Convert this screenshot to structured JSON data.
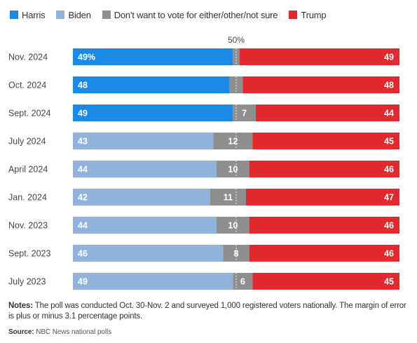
{
  "chart_data": {
    "type": "bar",
    "orientation": "horizontal-stacked",
    "legend": [
      {
        "name": "Harris",
        "color": "#1a8ae6"
      },
      {
        "name": "Biden",
        "color": "#90b2db"
      },
      {
        "name": "Don't want to vote for either/other/not sure",
        "color": "#8e8e8e"
      },
      {
        "name": "Trump",
        "color": "#e0282f"
      }
    ],
    "midline_label": "50%",
    "xlim": [
      0,
      100
    ],
    "legend_position": "top-left",
    "categories": [
      "Nov. 2024",
      "Oct. 2024",
      "Sept. 2024",
      "July 2024",
      "April 2024",
      "Jan. 2024",
      "Nov. 2023",
      "Sept. 2023",
      "July 2023"
    ],
    "rows": [
      {
        "label": "Nov. 2024",
        "dem_name": "Harris",
        "dem": 49,
        "dem_label": "49%",
        "other": 2,
        "other_label": "",
        "trump": 49,
        "trump_label": "49"
      },
      {
        "label": "Oct. 2024",
        "dem_name": "Harris",
        "dem": 48,
        "dem_label": "48",
        "other": 4,
        "other_label": "",
        "trump": 48,
        "trump_label": "48"
      },
      {
        "label": "Sept. 2024",
        "dem_name": "Harris",
        "dem": 49,
        "dem_label": "49",
        "other": 7,
        "other_label": "7",
        "trump": 44,
        "trump_label": "44"
      },
      {
        "label": "July 2024",
        "dem_name": "Biden",
        "dem": 43,
        "dem_label": "43",
        "other": 12,
        "other_label": "12",
        "trump": 45,
        "trump_label": "45"
      },
      {
        "label": "April 2024",
        "dem_name": "Biden",
        "dem": 44,
        "dem_label": "44",
        "other": 10,
        "other_label": "10",
        "trump": 46,
        "trump_label": "46"
      },
      {
        "label": "Jan. 2024",
        "dem_name": "Biden",
        "dem": 42,
        "dem_label": "42",
        "other": 11,
        "other_label": "11",
        "trump": 47,
        "trump_label": "47"
      },
      {
        "label": "Nov. 2023",
        "dem_name": "Biden",
        "dem": 44,
        "dem_label": "44",
        "other": 10,
        "other_label": "10",
        "trump": 46,
        "trump_label": "46"
      },
      {
        "label": "Sept. 2023",
        "dem_name": "Biden",
        "dem": 46,
        "dem_label": "46",
        "other": 8,
        "other_label": "8",
        "trump": 46,
        "trump_label": "46"
      },
      {
        "label": "July 2023",
        "dem_name": "Biden",
        "dem": 49,
        "dem_label": "49",
        "other": 6,
        "other_label": "6",
        "trump": 45,
        "trump_label": "45"
      }
    ]
  },
  "notes": {
    "label": "Notes:",
    "text": " The poll was conducted Oct. 30-Nov. 2 and surveyed 1,000 registered voters nationally. The margin of error is plus or minus 3.1 percentage points."
  },
  "source": {
    "label": "Source:",
    "text": " NBC News national polls"
  }
}
